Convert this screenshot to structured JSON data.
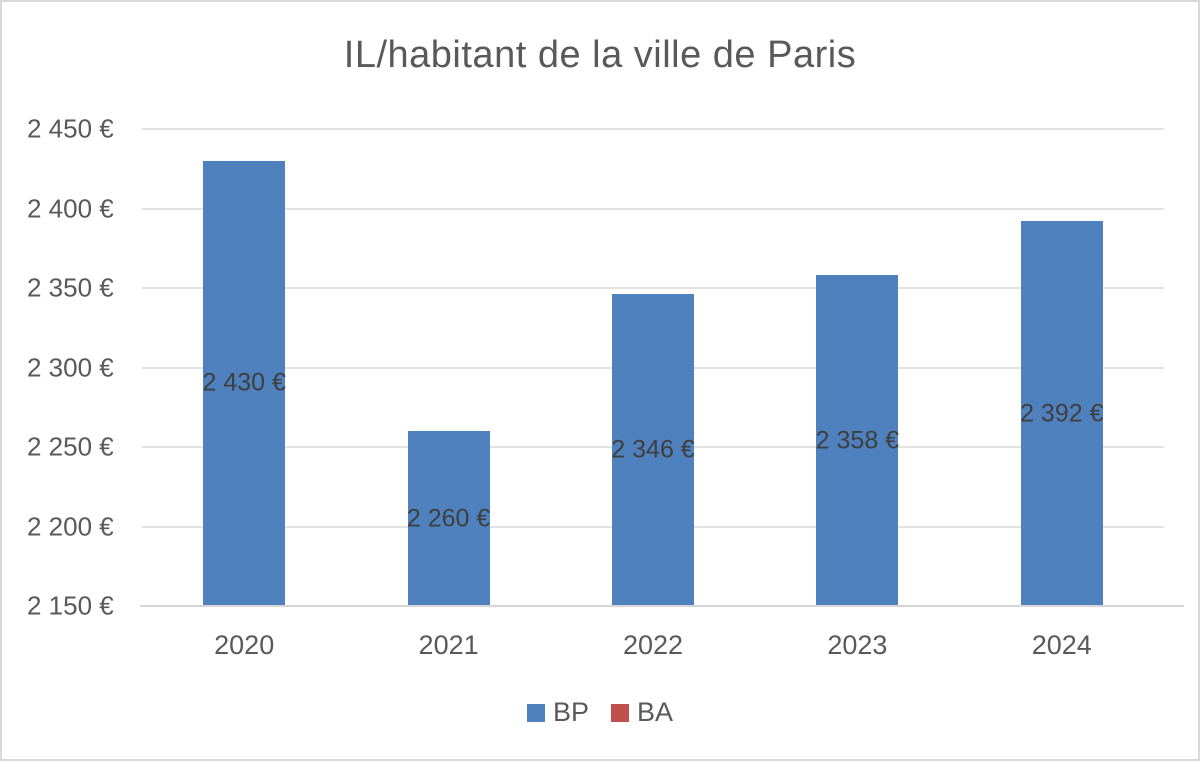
{
  "chart_data": {
    "type": "bar",
    "title": "IL/habitant de la ville de Paris",
    "categories": [
      "2020",
      "2021",
      "2022",
      "2023",
      "2024"
    ],
    "series": [
      {
        "name": "BP",
        "color": "#4E81BD",
        "values": [
          2430,
          2260,
          2346,
          2358,
          2392
        ],
        "data_labels": [
          "2 430 €",
          "2 260 €",
          "2 346 €",
          "2 358 €",
          "2 392 €"
        ]
      },
      {
        "name": "BA",
        "color": "#C0504D",
        "values": []
      }
    ],
    "ylim": [
      2150,
      2450
    ],
    "ytick_step": 50,
    "ytick_labels": [
      "2 450 €",
      "2 400 €",
      "2 350 €",
      "2 300 €",
      "2 250 €",
      "2 200 €",
      "2 150 €"
    ],
    "ytick_values": [
      2450,
      2400,
      2350,
      2300,
      2250,
      2200,
      2150
    ],
    "xlabel": "",
    "ylabel": "",
    "grid": true,
    "legend_position": "bottom",
    "legend": [
      {
        "label": "BP",
        "color": "#4E81BD"
      },
      {
        "label": "BA",
        "color": "#C0504D"
      }
    ],
    "colors": {
      "title_text": "#595959",
      "axis_text": "#595959",
      "data_label_text": "#3F3F3F",
      "gridline": "#E2E2E2",
      "frame_border": "#D9D9D9",
      "background": "#FFFFFF"
    }
  }
}
